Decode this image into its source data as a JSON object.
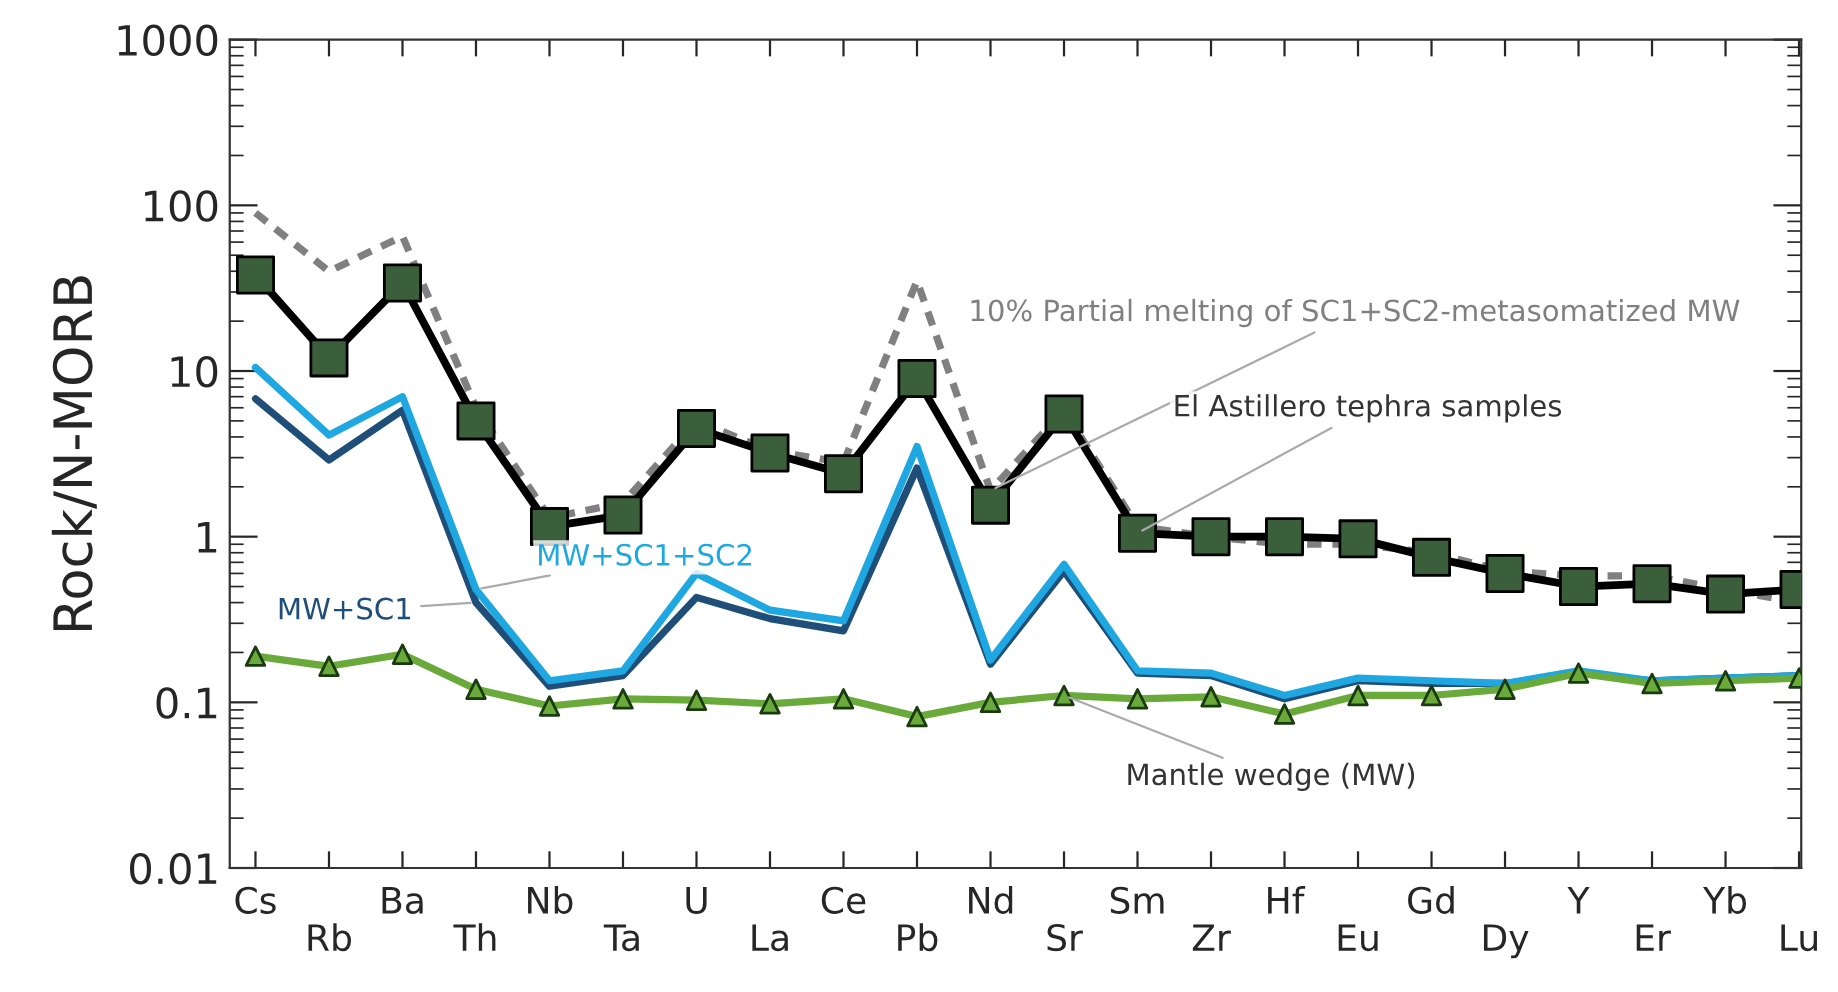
{
  "chart_data": {
    "type": "line",
    "ylabel": "Rock/N-MORB",
    "log": true,
    "grid": false,
    "legend": false,
    "categories": [
      "Cs",
      "Rb",
      "Ba",
      "Th",
      "Nb",
      "Ta",
      "U",
      "La",
      "Ce",
      "Pb",
      "Nd",
      "Sr",
      "Sm",
      "Zr",
      "Hf",
      "Eu",
      "Gd",
      "Dy",
      "Y",
      "Er",
      "Yb",
      "Lu"
    ],
    "ylim": [
      0.01,
      1000
    ],
    "yticks": [
      0.01,
      0.1,
      1,
      10,
      100,
      1000
    ],
    "series": [
      {
        "name": "10% Partial melting of SC1+SC2-metasomatized MW",
        "color": "#808080",
        "line_style": "dashed",
        "marker": "none",
        "values": [
          90,
          40,
          65,
          6,
          1.3,
          1.6,
          5,
          3.3,
          2.8,
          35,
          1.9,
          5.8,
          1.15,
          1.0,
          0.9,
          0.9,
          0.8,
          0.62,
          0.58,
          0.58,
          0.48,
          0.4
        ]
      },
      {
        "name": "El Astillero tephra samples",
        "color": "#3b5e3b",
        "line_style": "solid",
        "marker": "square",
        "values": [
          38,
          12,
          34,
          5,
          1.15,
          1.35,
          4.5,
          3.2,
          2.4,
          9,
          1.55,
          5.5,
          1.05,
          1.0,
          1.0,
          0.97,
          0.75,
          0.6,
          0.5,
          0.52,
          0.45,
          0.48
        ]
      },
      {
        "name": "MW+SC1",
        "color": "#1f4e79",
        "line_style": "solid",
        "marker": "none",
        "values": [
          6.8,
          2.9,
          5.8,
          0.4,
          0.125,
          0.145,
          0.43,
          0.32,
          0.27,
          2.6,
          0.17,
          0.62,
          0.15,
          0.145,
          0.105,
          0.135,
          0.13,
          0.13,
          0.15,
          0.135,
          0.14,
          0.145
        ]
      },
      {
        "name": "MW+SC1+SC2",
        "color": "#1ea7e1",
        "line_style": "solid",
        "marker": "none",
        "values": [
          10.5,
          4.1,
          7,
          0.48,
          0.135,
          0.155,
          0.6,
          0.36,
          0.31,
          3.5,
          0.18,
          0.68,
          0.155,
          0.15,
          0.11,
          0.14,
          0.135,
          0.13,
          0.155,
          0.135,
          0.14,
          0.145
        ]
      },
      {
        "name": "Mantle wedge (MW)",
        "color": "#6aaa3a",
        "line_style": "solid",
        "marker": "triangle",
        "values": [
          0.19,
          0.165,
          0.195,
          0.12,
          0.095,
          0.105,
          0.103,
          0.098,
          0.105,
          0.082,
          0.1,
          0.11,
          0.105,
          0.108,
          0.085,
          0.11,
          0.11,
          0.12,
          0.15,
          0.13,
          0.135,
          0.14
        ]
      }
    ]
  }
}
